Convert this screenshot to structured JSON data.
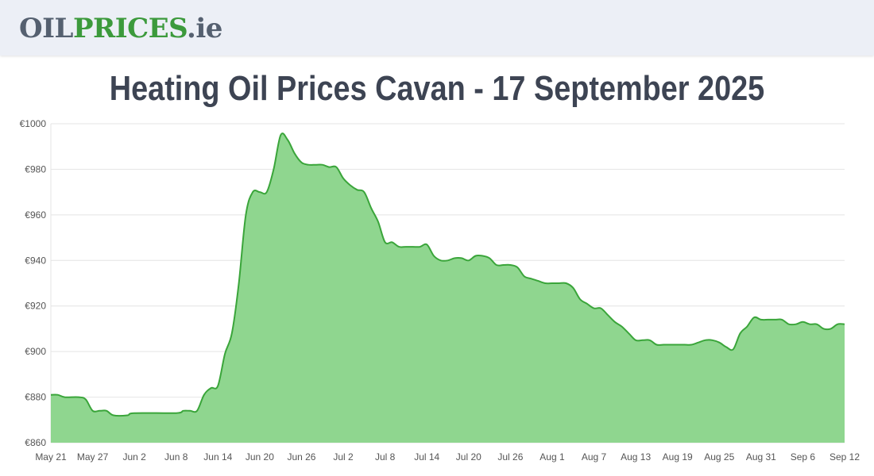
{
  "header": {
    "logo_part1": "OIL",
    "logo_part2": "PRICES",
    "logo_part3": ".ie"
  },
  "page_title": "Heating Oil Prices Cavan - 17 September 2025",
  "colors": {
    "line": "#3aa53a",
    "fill": "#8fd68f",
    "grid": "#e4e4e4",
    "title": "#3d4453",
    "logo_grey": "#556070",
    "logo_green": "#3c9a3c",
    "header_bg": "#eceff6"
  },
  "chart_data": {
    "type": "area",
    "title": "Heating Oil Prices Cavan - 17 September 2025",
    "xlabel": "",
    "ylabel": "",
    "ylim": [
      860,
      1000
    ],
    "yticks": [
      860,
      880,
      900,
      920,
      940,
      960,
      980,
      1000
    ],
    "ytick_labels": [
      "€860",
      "€880",
      "€900",
      "€920",
      "€940",
      "€960",
      "€980",
      "€1000"
    ],
    "xtick_labels": [
      "May 21",
      "May 27",
      "Jun 2",
      "Jun 8",
      "Jun 14",
      "Jun 20",
      "Jun 26",
      "Jul 2",
      "Jul 8",
      "Jul 14",
      "Jul 20",
      "Jul 26",
      "Aug 1",
      "Aug 7",
      "Aug 13",
      "Aug 19",
      "Aug 25",
      "Aug 31",
      "Sep 6",
      "Sep 12"
    ],
    "grid": true,
    "legend": "none",
    "series": [
      {
        "values": [
          [
            0,
            881
          ],
          [
            1,
            881
          ],
          [
            2,
            880
          ],
          [
            4,
            880
          ],
          [
            5,
            879
          ],
          [
            6,
            874
          ],
          [
            7,
            874
          ],
          [
            8,
            874
          ],
          [
            9,
            872
          ],
          [
            11,
            872
          ],
          [
            12,
            873
          ],
          [
            18,
            873
          ],
          [
            19,
            874
          ],
          [
            20,
            874
          ],
          [
            21,
            874
          ],
          [
            22,
            881
          ],
          [
            23,
            884
          ],
          [
            24,
            885
          ],
          [
            25,
            899
          ],
          [
            26,
            908
          ],
          [
            27,
            930
          ],
          [
            28,
            960
          ],
          [
            29,
            970
          ],
          [
            30,
            970
          ],
          [
            31,
            970
          ],
          [
            32,
            980
          ],
          [
            33,
            995
          ],
          [
            34,
            993
          ],
          [
            35,
            987
          ],
          [
            36,
            983
          ],
          [
            37,
            982
          ],
          [
            38,
            982
          ],
          [
            39,
            982
          ],
          [
            40,
            981
          ],
          [
            41,
            981
          ],
          [
            42,
            976
          ],
          [
            43,
            973
          ],
          [
            44,
            971
          ],
          [
            45,
            970
          ],
          [
            46,
            963
          ],
          [
            47,
            957
          ],
          [
            48,
            948
          ],
          [
            49,
            948
          ],
          [
            50,
            946
          ],
          [
            51,
            946
          ],
          [
            52,
            946
          ],
          [
            53,
            946
          ],
          [
            54,
            947
          ],
          [
            55,
            942
          ],
          [
            56,
            940
          ],
          [
            57,
            940
          ],
          [
            58,
            941
          ],
          [
            59,
            941
          ],
          [
            60,
            940
          ],
          [
            61,
            942
          ],
          [
            62,
            942
          ],
          [
            63,
            941
          ],
          [
            64,
            938
          ],
          [
            65,
            938
          ],
          [
            66,
            938
          ],
          [
            67,
            937
          ],
          [
            68,
            933
          ],
          [
            69,
            932
          ],
          [
            70,
            931
          ],
          [
            71,
            930
          ],
          [
            72,
            930
          ],
          [
            73,
            930
          ],
          [
            74,
            930
          ],
          [
            75,
            928
          ],
          [
            76,
            923
          ],
          [
            77,
            921
          ],
          [
            78,
            919
          ],
          [
            79,
            919
          ],
          [
            80,
            916
          ],
          [
            81,
            913
          ],
          [
            82,
            911
          ],
          [
            83,
            908
          ],
          [
            84,
            905
          ],
          [
            85,
            905
          ],
          [
            86,
            905
          ],
          [
            87,
            903
          ],
          [
            88,
            903
          ],
          [
            89,
            903
          ],
          [
            90,
            903
          ],
          [
            91,
            903
          ],
          [
            92,
            903
          ],
          [
            93,
            904
          ],
          [
            94,
            905
          ],
          [
            95,
            905
          ],
          [
            96,
            904
          ],
          [
            97,
            902
          ],
          [
            98,
            901
          ],
          [
            99,
            908
          ],
          [
            100,
            911
          ],
          [
            101,
            915
          ],
          [
            102,
            914
          ],
          [
            103,
            914
          ],
          [
            104,
            914
          ],
          [
            105,
            914
          ],
          [
            106,
            912
          ],
          [
            107,
            912
          ],
          [
            108,
            913
          ],
          [
            109,
            912
          ],
          [
            110,
            912
          ],
          [
            111,
            910
          ],
          [
            112,
            910
          ],
          [
            113,
            912
          ],
          [
            114,
            912
          ]
        ]
      }
    ]
  }
}
